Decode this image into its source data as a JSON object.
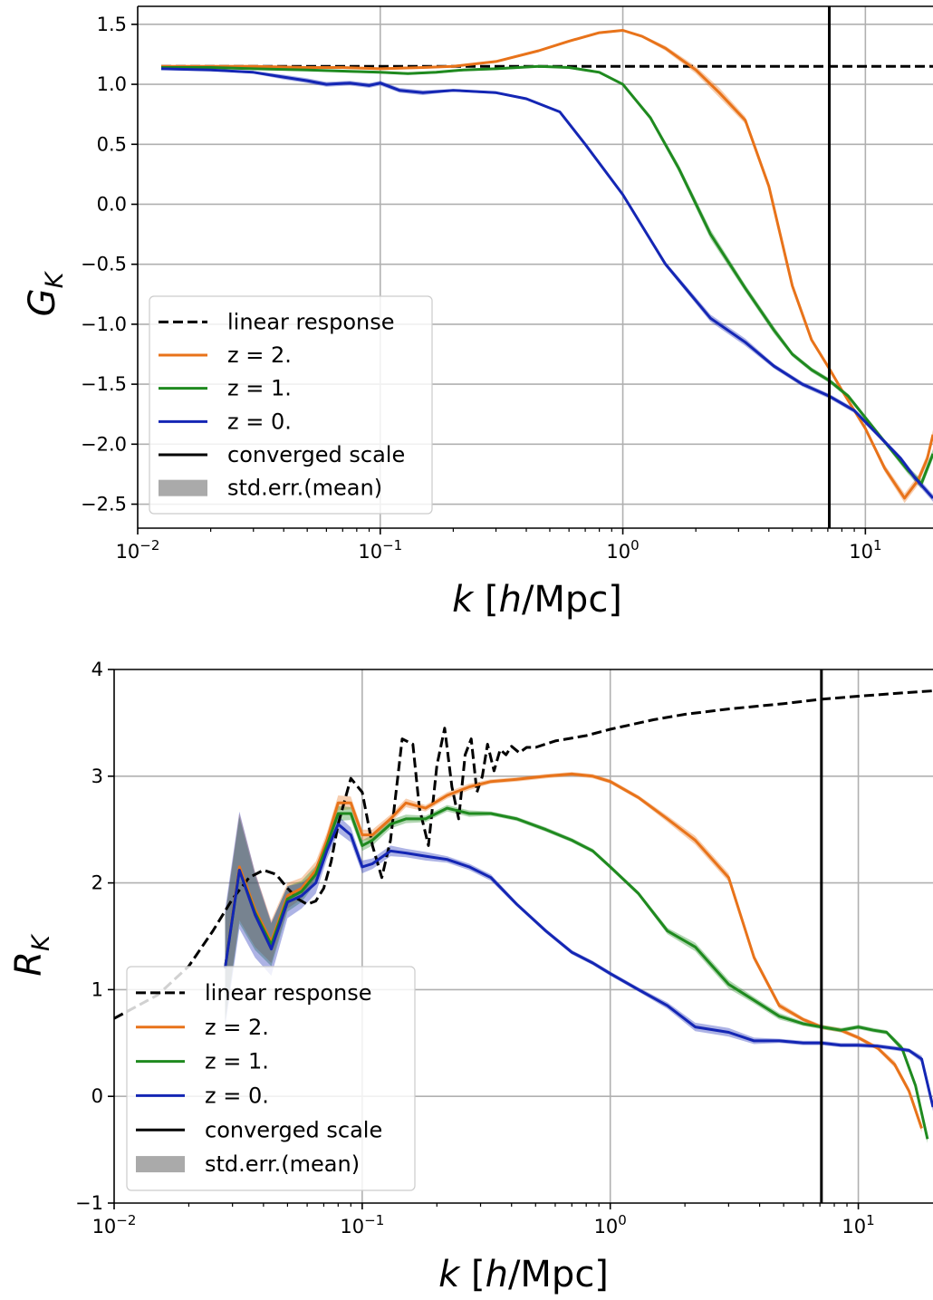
{
  "chart_data": [
    {
      "type": "line",
      "ylabel_main": "G",
      "ylabel_sub": "K",
      "xlabel_k": "k",
      "xlabel_rest": "[h/Mpc]",
      "xscale": "log",
      "xlim": [
        0.01,
        19
      ],
      "ylim": [
        -2.7,
        1.65
      ],
      "yticks": [
        1.5,
        1.0,
        0.5,
        0.0,
        -0.5,
        -1.0,
        -1.5,
        -2.0,
        -2.5
      ],
      "ytick_labels": [
        "1.5",
        "1.0",
        "0.5",
        "0.0",
        "−0.5",
        "−1.0",
        "−1.5",
        "−2.0",
        "−2.5"
      ],
      "xticks": [
        {
          "value": 0.01,
          "base": "10",
          "exp": "−2"
        },
        {
          "value": 0.1,
          "base": "10",
          "exp": "−1"
        },
        {
          "value": 1,
          "base": "10",
          "exp": "0"
        },
        {
          "value": 10,
          "base": "10",
          "exp": "1"
        }
      ],
      "grid": true,
      "legend_position": "lower-left",
      "legend": [
        "linear response",
        "z = 2.",
        "z = 1.",
        "z = 0.",
        "converged scale",
        "std.err.(mean)"
      ],
      "converged_scale_k": 7.1,
      "series": [
        {
          "name": "linear response",
          "style": "dashed",
          "color": "#000000",
          "x": [
            0.0125,
            19
          ],
          "y": [
            1.15,
            1.15
          ]
        },
        {
          "name": "z = 2.",
          "color": "#e8731a",
          "x": [
            0.0125,
            0.02,
            0.03,
            0.05,
            0.07,
            0.1,
            0.15,
            0.2,
            0.3,
            0.45,
            0.6,
            0.8,
            1.0,
            1.2,
            1.5,
            2.0,
            2.5,
            3.2,
            4.0,
            5.0,
            6.0,
            7.1,
            8.0,
            10,
            12,
            14.5,
            16.5,
            18,
            19
          ],
          "y": [
            1.15,
            1.15,
            1.15,
            1.14,
            1.14,
            1.13,
            1.14,
            1.15,
            1.19,
            1.28,
            1.36,
            1.43,
            1.45,
            1.4,
            1.3,
            1.12,
            0.93,
            0.7,
            0.15,
            -0.68,
            -1.13,
            -1.37,
            -1.55,
            -1.87,
            -2.2,
            -2.45,
            -2.3,
            -2.12,
            -1.92
          ],
          "err": [
            0.01,
            0.01,
            0.01,
            0.01,
            0.01,
            0.01,
            0.01,
            0.01,
            0.01,
            0.01,
            0.01,
            0.01,
            0.01,
            0.01,
            0.02,
            0.03,
            0.04,
            0.03,
            0.03,
            0.03,
            0.02,
            0.02,
            0.02,
            0.02,
            0.03,
            0.04,
            0.04,
            0.04,
            0.04
          ]
        },
        {
          "name": "z = 1.",
          "color": "#1f8a1f",
          "x": [
            0.0125,
            0.02,
            0.03,
            0.05,
            0.07,
            0.1,
            0.13,
            0.17,
            0.22,
            0.3,
            0.45,
            0.6,
            0.8,
            1.0,
            1.3,
            1.7,
            2.3,
            3.2,
            4.2,
            5.0,
            6.0,
            7.1,
            8.5,
            10,
            12,
            15,
            17,
            19
          ],
          "y": [
            1.14,
            1.14,
            1.13,
            1.12,
            1.11,
            1.1,
            1.09,
            1.1,
            1.12,
            1.13,
            1.15,
            1.14,
            1.1,
            1.0,
            0.72,
            0.3,
            -0.25,
            -0.7,
            -1.05,
            -1.25,
            -1.38,
            -1.47,
            -1.6,
            -1.78,
            -1.98,
            -2.22,
            -2.33,
            -2.08
          ],
          "err": [
            0.01,
            0.01,
            0.01,
            0.01,
            0.01,
            0.01,
            0.01,
            0.01,
            0.01,
            0.01,
            0.01,
            0.01,
            0.01,
            0.01,
            0.02,
            0.03,
            0.04,
            0.03,
            0.03,
            0.02,
            0.02,
            0.02,
            0.02,
            0.02,
            0.02,
            0.03,
            0.04,
            0.04
          ]
        },
        {
          "name": "z = 0.",
          "color": "#1426b4",
          "x": [
            0.0125,
            0.02,
            0.03,
            0.04,
            0.05,
            0.06,
            0.075,
            0.09,
            0.1,
            0.12,
            0.15,
            0.2,
            0.3,
            0.4,
            0.55,
            0.7,
            1.0,
            1.5,
            2.3,
            3.2,
            4.2,
            5.5,
            7.1,
            9.0,
            11,
            14,
            16,
            19
          ],
          "y": [
            1.13,
            1.12,
            1.1,
            1.06,
            1.03,
            1.0,
            1.01,
            0.99,
            1.01,
            0.95,
            0.93,
            0.95,
            0.93,
            0.88,
            0.77,
            0.5,
            0.08,
            -0.5,
            -0.95,
            -1.15,
            -1.35,
            -1.5,
            -1.6,
            -1.72,
            -1.9,
            -2.12,
            -2.28,
            -2.45
          ],
          "err": [
            0.01,
            0.01,
            0.01,
            0.02,
            0.02,
            0.02,
            0.02,
            0.02,
            0.02,
            0.02,
            0.02,
            0.01,
            0.01,
            0.01,
            0.01,
            0.01,
            0.01,
            0.02,
            0.03,
            0.03,
            0.02,
            0.02,
            0.02,
            0.02,
            0.02,
            0.02,
            0.03,
            0.03
          ]
        }
      ]
    },
    {
      "type": "line",
      "ylabel_main": "R",
      "ylabel_sub": "K",
      "xlabel_k": "k",
      "xlabel_rest": "[h/Mpc]",
      "xscale": "log",
      "xlim": [
        0.01,
        20
      ],
      "ylim": [
        -1,
        4
      ],
      "yticks": [
        4,
        3,
        2,
        1,
        0,
        -1
      ],
      "ytick_labels": [
        "4",
        "3",
        "2",
        "1",
        "0",
        "−1"
      ],
      "xticks": [
        {
          "value": 0.01,
          "base": "10",
          "exp": "−2"
        },
        {
          "value": 0.1,
          "base": "10",
          "exp": "−1"
        },
        {
          "value": 1,
          "base": "10",
          "exp": "0"
        },
        {
          "value": 10,
          "base": "10",
          "exp": "1"
        }
      ],
      "grid": true,
      "legend_position": "lower-left",
      "legend": [
        "linear response",
        "z = 2.",
        "z = 1.",
        "z = 0.",
        "converged scale",
        "std.err.(mean)"
      ],
      "converged_scale_k": 7.1,
      "series": [
        {
          "name": "linear response",
          "style": "dashed",
          "color": "#000000",
          "x": [
            0.01,
            0.015,
            0.02,
            0.025,
            0.03,
            0.035,
            0.04,
            0.045,
            0.05,
            0.055,
            0.06,
            0.065,
            0.07,
            0.075,
            0.08,
            0.09,
            0.1,
            0.11,
            0.12,
            0.13,
            0.145,
            0.16,
            0.17,
            0.185,
            0.2,
            0.215,
            0.23,
            0.245,
            0.26,
            0.275,
            0.29,
            0.305,
            0.32,
            0.34,
            0.36,
            0.38,
            0.4,
            0.43,
            0.46,
            0.5,
            0.6,
            0.8,
            1.0,
            1.5,
            2.0,
            3.0,
            5.0,
            7.0,
            10,
            15,
            20
          ],
          "y": [
            0.73,
            0.95,
            1.22,
            1.55,
            1.85,
            2.05,
            2.12,
            2.08,
            1.95,
            1.85,
            1.8,
            1.83,
            1.95,
            2.2,
            2.55,
            2.98,
            2.85,
            2.35,
            2.05,
            2.4,
            3.35,
            3.3,
            2.7,
            2.35,
            3.1,
            3.45,
            2.9,
            2.6,
            3.2,
            3.35,
            2.85,
            3.0,
            3.3,
            3.05,
            3.25,
            3.2,
            3.28,
            3.22,
            3.27,
            3.27,
            3.33,
            3.38,
            3.44,
            3.53,
            3.58,
            3.63,
            3.68,
            3.72,
            3.75,
            3.78,
            3.8
          ]
        },
        {
          "name": "z = 2.",
          "color": "#e8731a",
          "x": [
            0.028,
            0.032,
            0.037,
            0.043,
            0.05,
            0.057,
            0.065,
            0.072,
            0.08,
            0.09,
            0.1,
            0.11,
            0.13,
            0.15,
            0.18,
            0.22,
            0.27,
            0.33,
            0.42,
            0.55,
            0.7,
            0.85,
            1.0,
            1.3,
            1.7,
            2.2,
            3.0,
            3.8,
            4.8,
            6.0,
            7.1,
            8.5,
            10,
            12,
            14,
            16,
            18
          ],
          "y": [
            1.2,
            2.15,
            1.75,
            1.45,
            1.88,
            1.95,
            2.12,
            2.4,
            2.75,
            2.75,
            2.45,
            2.45,
            2.6,
            2.75,
            2.7,
            2.82,
            2.9,
            2.95,
            2.97,
            3.0,
            3.02,
            3.0,
            2.95,
            2.8,
            2.6,
            2.4,
            2.05,
            1.3,
            0.85,
            0.72,
            0.65,
            0.62,
            0.55,
            0.45,
            0.3,
            0.05,
            -0.3
          ],
          "err": [
            0.5,
            0.5,
            0.35,
            0.2,
            0.12,
            0.1,
            0.08,
            0.07,
            0.07,
            0.06,
            0.05,
            0.05,
            0.04,
            0.04,
            0.03,
            0.03,
            0.03,
            0.02,
            0.02,
            0.02,
            0.02,
            0.02,
            0.02,
            0.02,
            0.03,
            0.04,
            0.04,
            0.03,
            0.03,
            0.02,
            0.02,
            0.02,
            0.02,
            0.02,
            0.03,
            0.03,
            0.04
          ]
        },
        {
          "name": "z = 1.",
          "color": "#1f8a1f",
          "x": [
            0.028,
            0.032,
            0.037,
            0.043,
            0.05,
            0.057,
            0.065,
            0.072,
            0.08,
            0.09,
            0.1,
            0.11,
            0.13,
            0.15,
            0.18,
            0.22,
            0.27,
            0.33,
            0.42,
            0.55,
            0.7,
            0.85,
            1.0,
            1.3,
            1.7,
            2.2,
            3.0,
            3.8,
            4.8,
            6.0,
            7.1,
            8.5,
            10,
            11.5,
            13,
            15,
            17,
            19
          ],
          "y": [
            1.2,
            2.12,
            1.72,
            1.42,
            1.85,
            1.92,
            2.08,
            2.35,
            2.65,
            2.65,
            2.35,
            2.4,
            2.55,
            2.6,
            2.6,
            2.7,
            2.65,
            2.65,
            2.6,
            2.5,
            2.4,
            2.3,
            2.15,
            1.9,
            1.55,
            1.4,
            1.05,
            0.9,
            0.75,
            0.68,
            0.65,
            0.62,
            0.65,
            0.62,
            0.6,
            0.45,
            0.1,
            -0.4
          ],
          "err": [
            0.5,
            0.5,
            0.35,
            0.2,
            0.12,
            0.1,
            0.08,
            0.07,
            0.07,
            0.06,
            0.05,
            0.05,
            0.04,
            0.04,
            0.03,
            0.03,
            0.03,
            0.02,
            0.02,
            0.02,
            0.02,
            0.02,
            0.02,
            0.02,
            0.03,
            0.04,
            0.04,
            0.03,
            0.03,
            0.02,
            0.02,
            0.02,
            0.02,
            0.02,
            0.02,
            0.03,
            0.03,
            0.04
          ]
        },
        {
          "name": "z = 0.",
          "color": "#1426b4",
          "x": [
            0.028,
            0.032,
            0.037,
            0.043,
            0.05,
            0.057,
            0.065,
            0.072,
            0.08,
            0.09,
            0.1,
            0.11,
            0.13,
            0.15,
            0.18,
            0.22,
            0.27,
            0.33,
            0.42,
            0.55,
            0.7,
            0.85,
            1.0,
            1.3,
            1.7,
            2.2,
            3.0,
            3.8,
            4.8,
            6.0,
            7.1,
            8.5,
            10,
            12,
            14,
            16,
            18,
            20
          ],
          "y": [
            1.2,
            2.12,
            1.7,
            1.38,
            1.82,
            1.88,
            2.0,
            2.3,
            2.55,
            2.45,
            2.15,
            2.18,
            2.3,
            2.28,
            2.25,
            2.22,
            2.15,
            2.05,
            1.8,
            1.55,
            1.35,
            1.25,
            1.15,
            1.0,
            0.85,
            0.65,
            0.6,
            0.52,
            0.52,
            0.5,
            0.5,
            0.48,
            0.48,
            0.47,
            0.45,
            0.43,
            0.35,
            -0.1
          ],
          "err": [
            0.55,
            0.55,
            0.4,
            0.25,
            0.15,
            0.12,
            0.1,
            0.08,
            0.08,
            0.07,
            0.06,
            0.05,
            0.05,
            0.04,
            0.04,
            0.03,
            0.03,
            0.03,
            0.02,
            0.02,
            0.02,
            0.02,
            0.02,
            0.02,
            0.03,
            0.04,
            0.04,
            0.03,
            0.02,
            0.02,
            0.02,
            0.02,
            0.02,
            0.02,
            0.02,
            0.02,
            0.03,
            0.04
          ]
        }
      ]
    }
  ]
}
